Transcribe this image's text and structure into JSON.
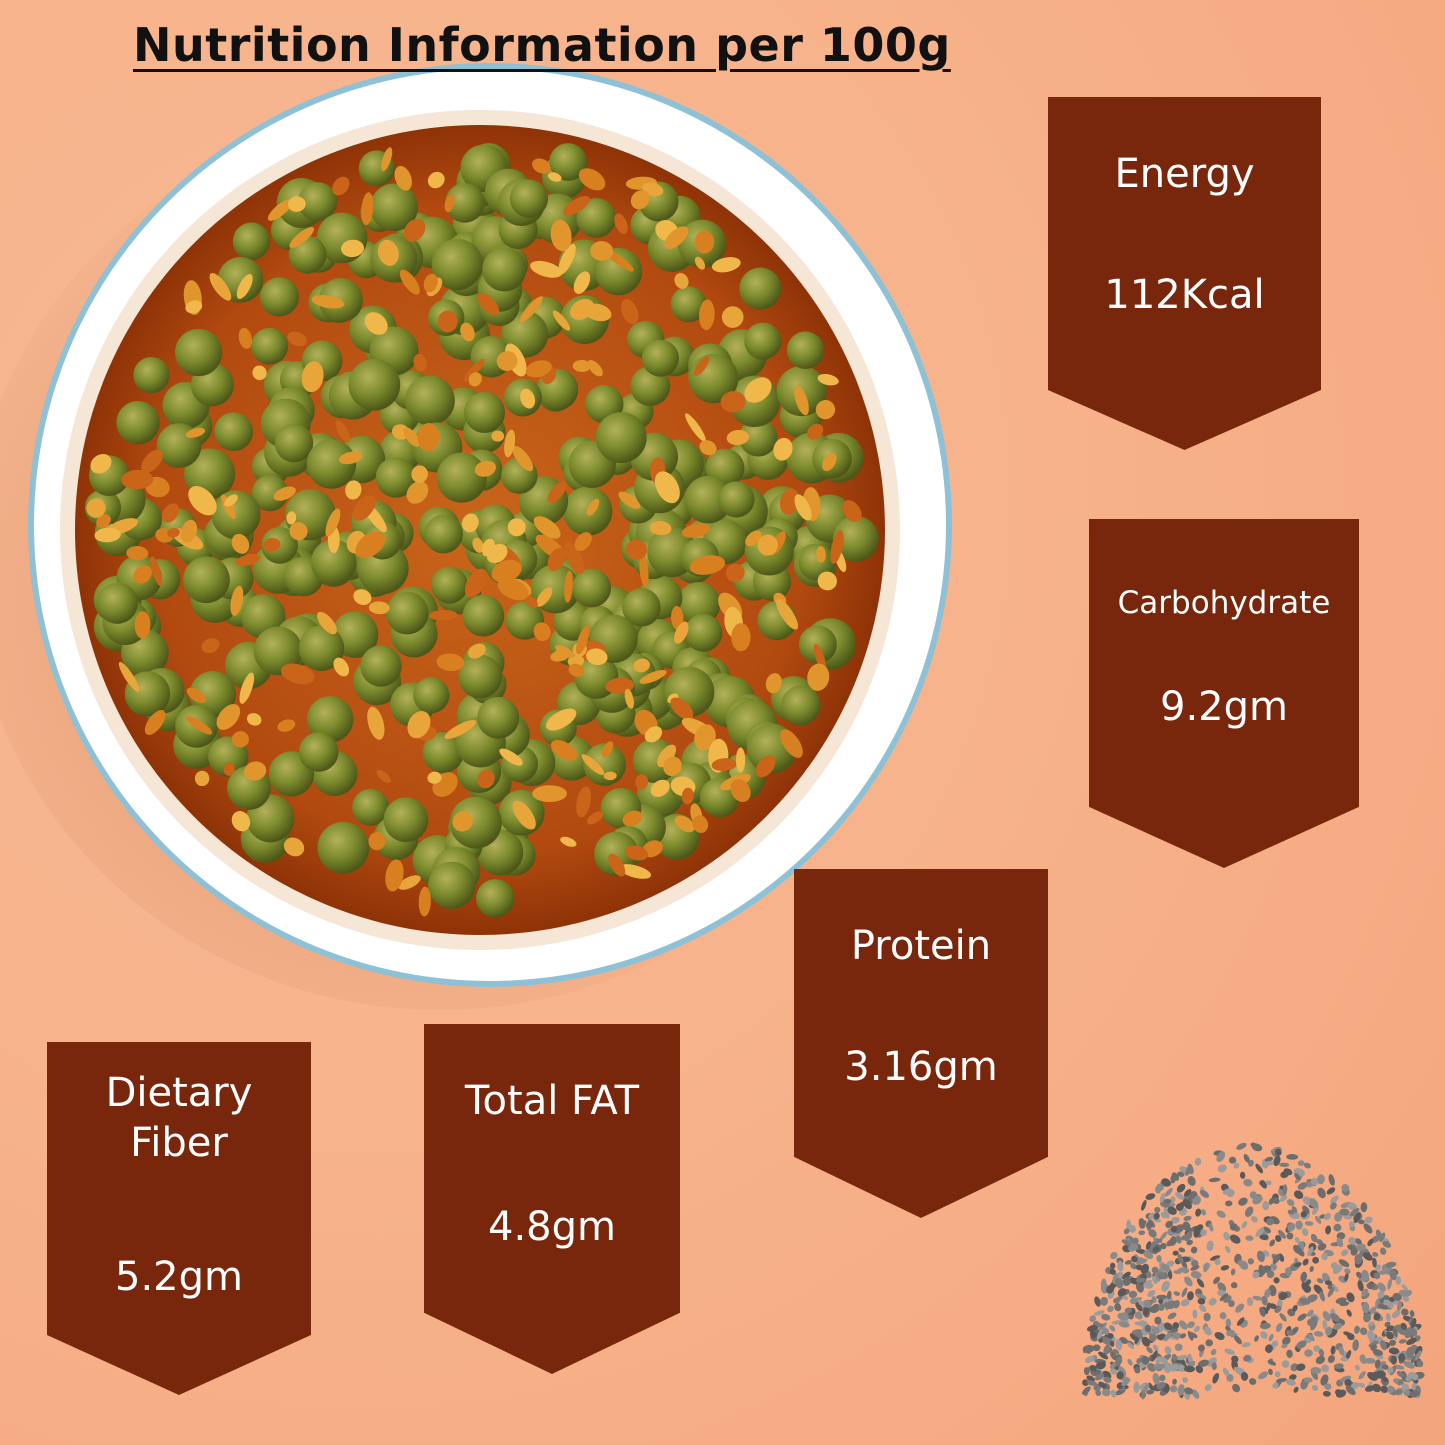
{
  "title": "Nutrition Information per 100g",
  "colors": {
    "card": "#79270c",
    "background": "#f6ad85",
    "text_light": "#ffffff",
    "title": "#111111"
  },
  "images": {
    "bowl": "bowl-of-green-peas-pickle",
    "seeds": "pile-of-grey-seeds"
  },
  "nutrients": {
    "energy": {
      "label": "Energy",
      "value": "112Kcal"
    },
    "carbohydrate": {
      "label": "Carbohydrate",
      "value": "9.2gm"
    },
    "protein": {
      "label": "Protein",
      "value": "3.16gm"
    },
    "total_fat": {
      "label": "Total FAT",
      "value": "4.8gm"
    },
    "dietary_fiber": {
      "label": "Dietary Fiber",
      "value": "5.2gm"
    }
  }
}
